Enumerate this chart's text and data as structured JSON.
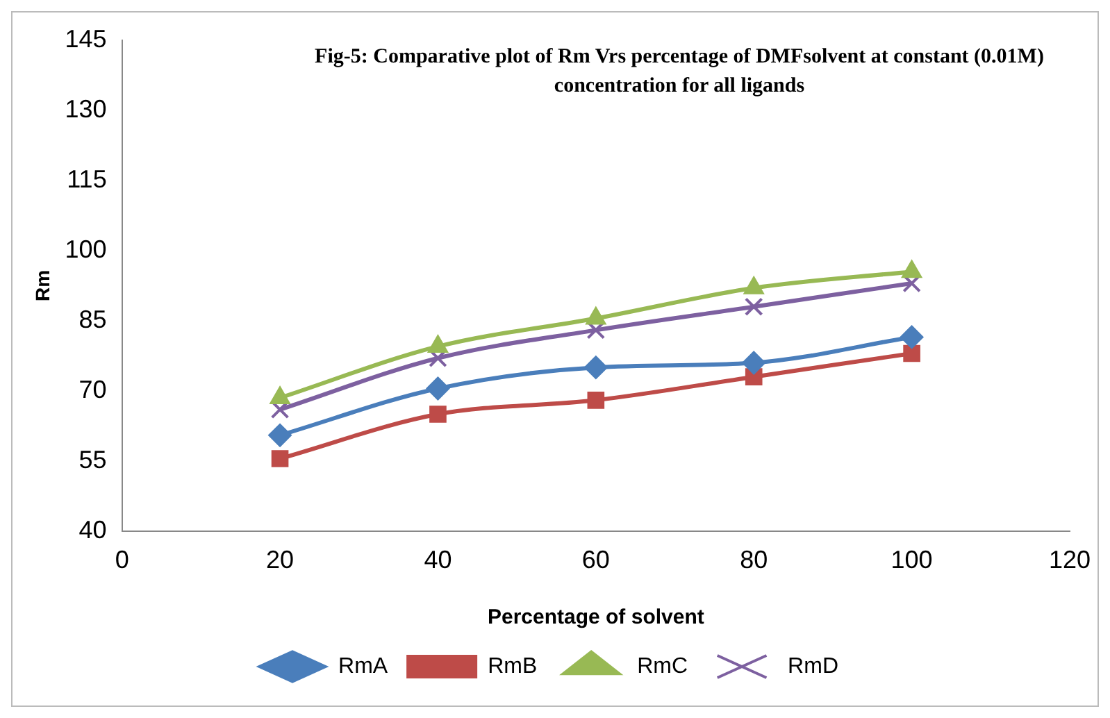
{
  "chart_data": {
    "type": "line",
    "title": "Fig-5: Comparative plot of Rm Vrs percentage of DMFsolvent at constant (0.01M) concentration for all ligands",
    "xlabel": "Percentage of solvent",
    "ylabel": "Rm",
    "x": [
      20,
      40,
      60,
      80,
      100
    ],
    "series": [
      {
        "name": "RmA",
        "color": "#4a7ebb",
        "marker": "diamond",
        "values": [
          60.5,
          70.5,
          75,
          76,
          81.5
        ]
      },
      {
        "name": "RmB",
        "color": "#be4b48",
        "marker": "square",
        "values": [
          55.5,
          65,
          68,
          73,
          78
        ]
      },
      {
        "name": "RmC",
        "color": "#98b954",
        "marker": "triangle",
        "values": [
          68.5,
          79.5,
          85.5,
          92,
          95.5
        ]
      },
      {
        "name": "RmD",
        "color": "#7d60a0",
        "marker": "cross",
        "values": [
          66,
          77,
          83,
          88,
          93
        ]
      }
    ],
    "xlim": [
      0,
      120
    ],
    "xticks": [
      0,
      20,
      40,
      60,
      80,
      100,
      120
    ],
    "ylim": [
      40,
      145
    ],
    "yticks": [
      40,
      55,
      70,
      85,
      100,
      115,
      130,
      145
    ],
    "grid": false,
    "legend": "bottom"
  }
}
